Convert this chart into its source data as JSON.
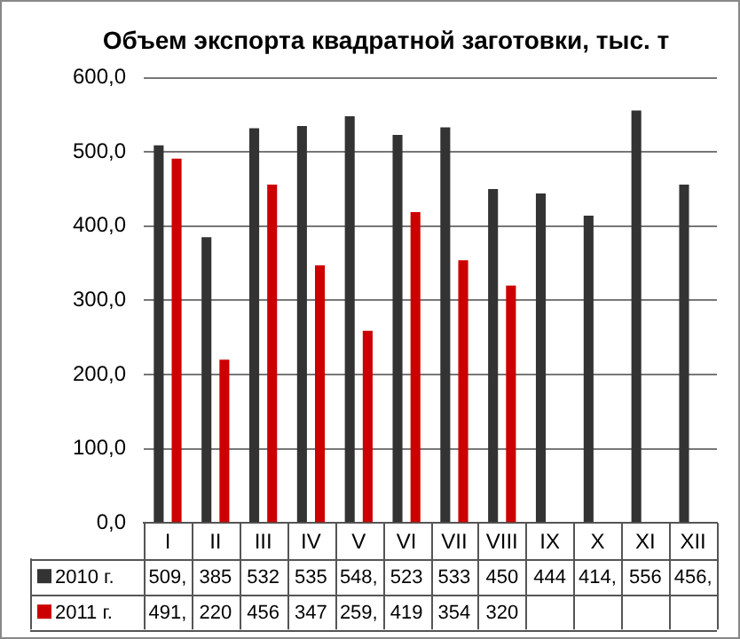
{
  "chart_data": {
    "type": "bar",
    "title": "Объем экспорта квадратной заготовки, тыс. т",
    "categories": [
      "I",
      "II",
      "III",
      "IV",
      "V",
      "VI",
      "VII",
      "VIII",
      "IX",
      "X",
      "XI",
      "XII"
    ],
    "series": [
      {
        "name": "2010 г.",
        "color": "#333333",
        "values": [
          509,
          385,
          532,
          535,
          548,
          523,
          533,
          450,
          444,
          414,
          556,
          456
        ],
        "value_labels": [
          "509,",
          "385",
          "532",
          "535",
          "548,",
          "523",
          "533",
          "450",
          "444",
          "414,",
          "556",
          "456,"
        ]
      },
      {
        "name": "2011 г.",
        "color": "#cc0000",
        "values": [
          491,
          220,
          456,
          347,
          259,
          419,
          354,
          320,
          null,
          null,
          null,
          null
        ],
        "value_labels": [
          "491,",
          "220",
          "456",
          "347",
          "259,",
          "419",
          "354",
          "320",
          null,
          null,
          null,
          null
        ]
      }
    ],
    "ylim": [
      0,
      600
    ],
    "yticks": [
      {
        "value": 0,
        "label": "0,0"
      },
      {
        "value": 100,
        "label": "100,0"
      },
      {
        "value": 200,
        "label": "200,0"
      },
      {
        "value": 300,
        "label": "300,0"
      },
      {
        "value": 400,
        "label": "400,0"
      },
      {
        "value": 500,
        "label": "500,0"
      },
      {
        "value": 600,
        "label": "600,0"
      }
    ],
    "grid": "y",
    "legend": "bottom"
  }
}
